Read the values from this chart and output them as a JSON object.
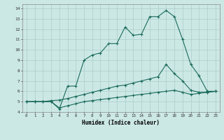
{
  "xlabel": "Humidex (Indice chaleur)",
  "bg_color": "#cce8e5",
  "grid_color": "#aaccca",
  "line_color": "#1a6b5a",
  "xlim": [
    -0.5,
    23.5
  ],
  "ylim": [
    4,
    14.4
  ],
  "xticks": [
    0,
    1,
    2,
    3,
    4,
    5,
    6,
    7,
    8,
    9,
    10,
    11,
    12,
    13,
    14,
    15,
    16,
    17,
    18,
    19,
    20,
    21,
    22,
    23
  ],
  "yticks": [
    4,
    5,
    6,
    7,
    8,
    9,
    10,
    11,
    12,
    13,
    14
  ],
  "line1_x": [
    0,
    1,
    2,
    3,
    4,
    5,
    6,
    7,
    8,
    9,
    10,
    11,
    12,
    13,
    14,
    15,
    16,
    17,
    18,
    19,
    20,
    21,
    22,
    23
  ],
  "line1_y": [
    5.0,
    5.0,
    5.0,
    5.0,
    4.3,
    6.5,
    6.5,
    9.0,
    9.5,
    9.7,
    10.6,
    10.6,
    12.2,
    11.4,
    11.5,
    13.2,
    13.2,
    13.8,
    13.2,
    11.0,
    8.6,
    7.5,
    6.0,
    6.0
  ],
  "line2_x": [
    0,
    1,
    2,
    3,
    4,
    5,
    6,
    7,
    8,
    9,
    10,
    11,
    12,
    13,
    14,
    15,
    16,
    17,
    18,
    19,
    20,
    21,
    22,
    23
  ],
  "line2_y": [
    5.0,
    5.0,
    5.0,
    5.1,
    5.15,
    5.3,
    5.5,
    5.7,
    5.9,
    6.1,
    6.3,
    6.5,
    6.6,
    6.8,
    7.0,
    7.2,
    7.4,
    8.6,
    7.7,
    7.0,
    6.1,
    5.9,
    5.9,
    6.0
  ],
  "line3_x": [
    0,
    1,
    2,
    3,
    4,
    5,
    6,
    7,
    8,
    9,
    10,
    11,
    12,
    13,
    14,
    15,
    16,
    17,
    18,
    19,
    20,
    21,
    22,
    23
  ],
  "line3_y": [
    5.0,
    5.0,
    5.0,
    5.0,
    4.4,
    4.6,
    4.8,
    5.0,
    5.1,
    5.2,
    5.3,
    5.4,
    5.5,
    5.6,
    5.7,
    5.8,
    5.9,
    6.0,
    6.1,
    5.9,
    5.7,
    5.8,
    5.9,
    6.0
  ]
}
